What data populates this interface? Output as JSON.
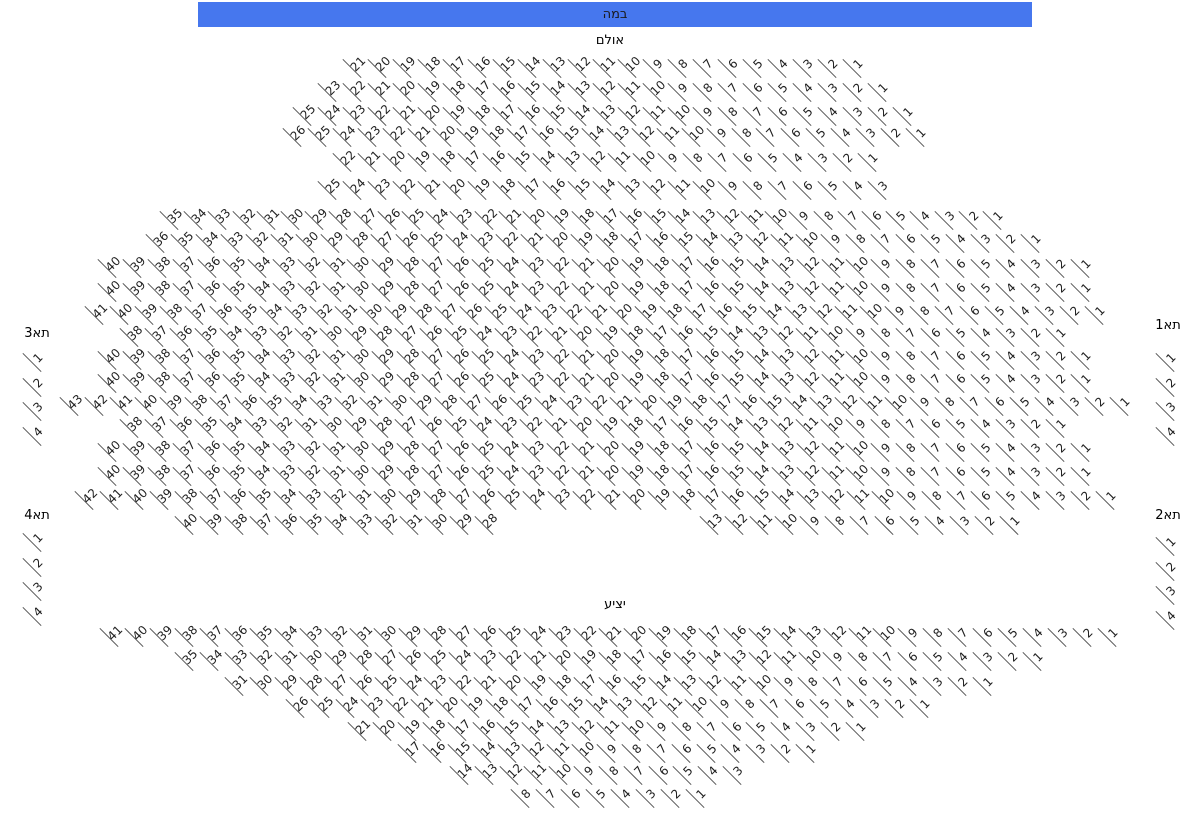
{
  "stage": {
    "label": "במה",
    "color": "#4677ee"
  },
  "hall": {
    "label": "אולם",
    "rows": [
      {
        "blocks": [
          {
            "from": 21,
            "to": 1
          }
        ]
      },
      {
        "blocks": [
          {
            "from": 23,
            "to": 1
          }
        ]
      },
      {
        "blocks": [
          {
            "from": 25,
            "to": 1
          }
        ]
      },
      {
        "blocks": [
          {
            "from": 26,
            "to": 1
          }
        ]
      },
      {
        "blocks": [
          {
            "from": 22,
            "to": 1
          }
        ]
      },
      {
        "blocks": [
          {
            "from": 25,
            "to": 3
          }
        ]
      },
      {
        "blocks": [
          {
            "from": 35,
            "to": 1
          }
        ]
      },
      {
        "blocks": [
          {
            "from": 36,
            "to": 1
          }
        ]
      },
      {
        "blocks": [
          {
            "from": 40,
            "to": 1
          }
        ]
      },
      {
        "blocks": [
          {
            "from": 40,
            "to": 1
          }
        ]
      },
      {
        "blocks": [
          {
            "from": 41,
            "to": 1
          }
        ]
      },
      {
        "blocks": [
          {
            "from": 38,
            "to": 1
          }
        ]
      },
      {
        "blocks": [
          {
            "from": 40,
            "to": 1
          }
        ]
      },
      {
        "blocks": [
          {
            "from": 40,
            "to": 1
          }
        ]
      },
      {
        "blocks": [
          {
            "from": 43,
            "to": 1
          }
        ]
      },
      {
        "blocks": [
          {
            "from": 38,
            "to": 1
          }
        ]
      },
      {
        "blocks": [
          {
            "from": 40,
            "to": 1
          }
        ]
      },
      {
        "blocks": [
          {
            "from": 40,
            "to": 1
          }
        ]
      },
      {
        "blocks": [
          {
            "from": 42,
            "to": 1
          }
        ]
      },
      {
        "blocks": [
          {
            "from": 40,
            "to": 28
          },
          {
            "from": 13,
            "to": 1
          }
        ]
      }
    ]
  },
  "boxes": [
    {
      "label": "תא1",
      "seats": [
        1,
        2,
        3,
        4
      ]
    },
    {
      "label": "תא2",
      "seats": [
        1,
        2,
        3,
        4
      ]
    },
    {
      "label": "תא3",
      "seats": [
        1,
        2,
        3,
        4
      ]
    },
    {
      "label": "תא4",
      "seats": [
        1,
        2,
        3,
        4
      ]
    }
  ],
  "balcony": {
    "label": "יציע",
    "rows": [
      {
        "blocks": [
          {
            "from": 41,
            "to": 1
          }
        ]
      },
      {
        "blocks": [
          {
            "from": 35,
            "to": 1
          }
        ]
      },
      {
        "blocks": [
          {
            "from": 31,
            "to": 1
          }
        ]
      },
      {
        "blocks": [
          {
            "from": 26,
            "to": 1
          }
        ]
      },
      {
        "blocks": [
          {
            "from": 21,
            "to": 1
          }
        ]
      },
      {
        "blocks": [
          {
            "from": 17,
            "to": 1
          }
        ]
      },
      {
        "blocks": [
          {
            "from": 14,
            "to": 3
          }
        ]
      },
      {
        "blocks": [
          {
            "from": 8,
            "to": 1
          }
        ]
      }
    ]
  }
}
